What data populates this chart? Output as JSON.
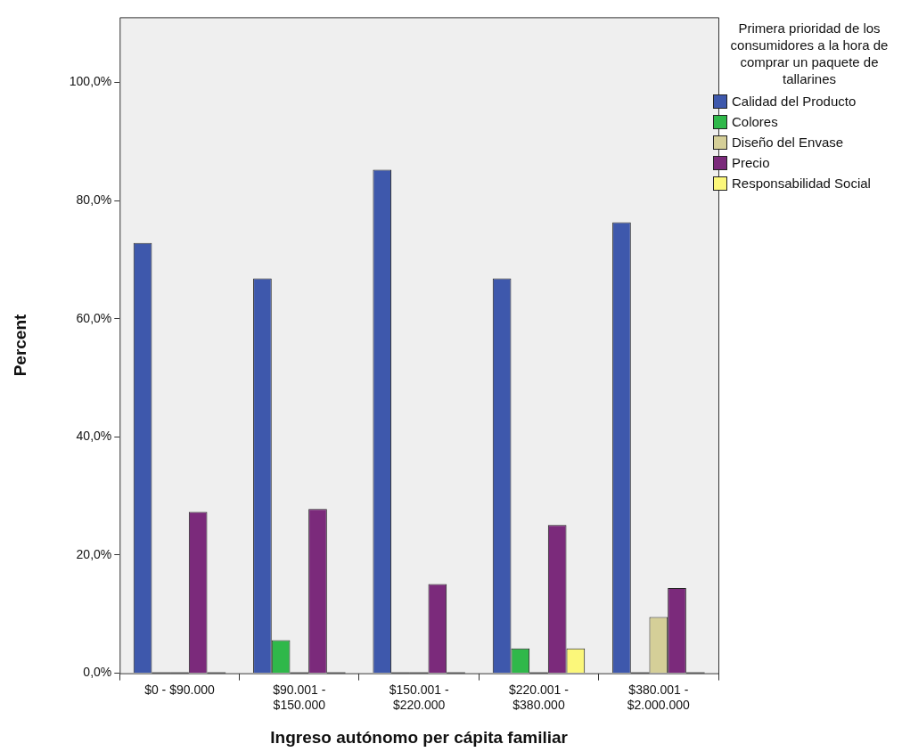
{
  "chart_data": {
    "type": "bar",
    "xlabel": "Ingreso autónomo per cápita familiar",
    "ylabel": "Percent",
    "legend_title": "Primera prioridad de los consumidores a la hora de comprar un paquete de tallarines",
    "legend": "top right",
    "categories": [
      "$0 - $90.000",
      "$90.001 - $150.000",
      "$150.001 - $220.000",
      "$220.001 - $380.000",
      "$380.001 - $2.000.000"
    ],
    "series": [
      {
        "name": "Calidad del Producto",
        "color": "#3e58ac",
        "values": [
          72.8,
          66.8,
          85.2,
          66.8,
          76.3
        ]
      },
      {
        "name": "Colores",
        "color": "#2fb84a",
        "values": [
          0,
          5.6,
          0,
          4.2,
          0
        ]
      },
      {
        "name": "Diseño del Envase",
        "color": "#d5cf98",
        "values": [
          0,
          0,
          0,
          0,
          9.5
        ]
      },
      {
        "name": "Precio",
        "color": "#7b2a7b",
        "values": [
          27.3,
          27.8,
          15.1,
          25.1,
          14.4
        ]
      },
      {
        "name": "Responsabilidad Social",
        "color": "#fbf77a",
        "values": [
          0,
          0,
          0,
          4.2,
          0
        ]
      }
    ],
    "ylim": [
      0,
      111
    ],
    "yticks": [
      {
        "value": 0,
        "label": "0,0%"
      },
      {
        "value": 20,
        "label": "20,0%"
      },
      {
        "value": 40,
        "label": "40,0%"
      },
      {
        "value": 60,
        "label": "60,0%"
      },
      {
        "value": 80,
        "label": "80,0%"
      },
      {
        "value": 100,
        "label": "100,0%"
      }
    ]
  }
}
